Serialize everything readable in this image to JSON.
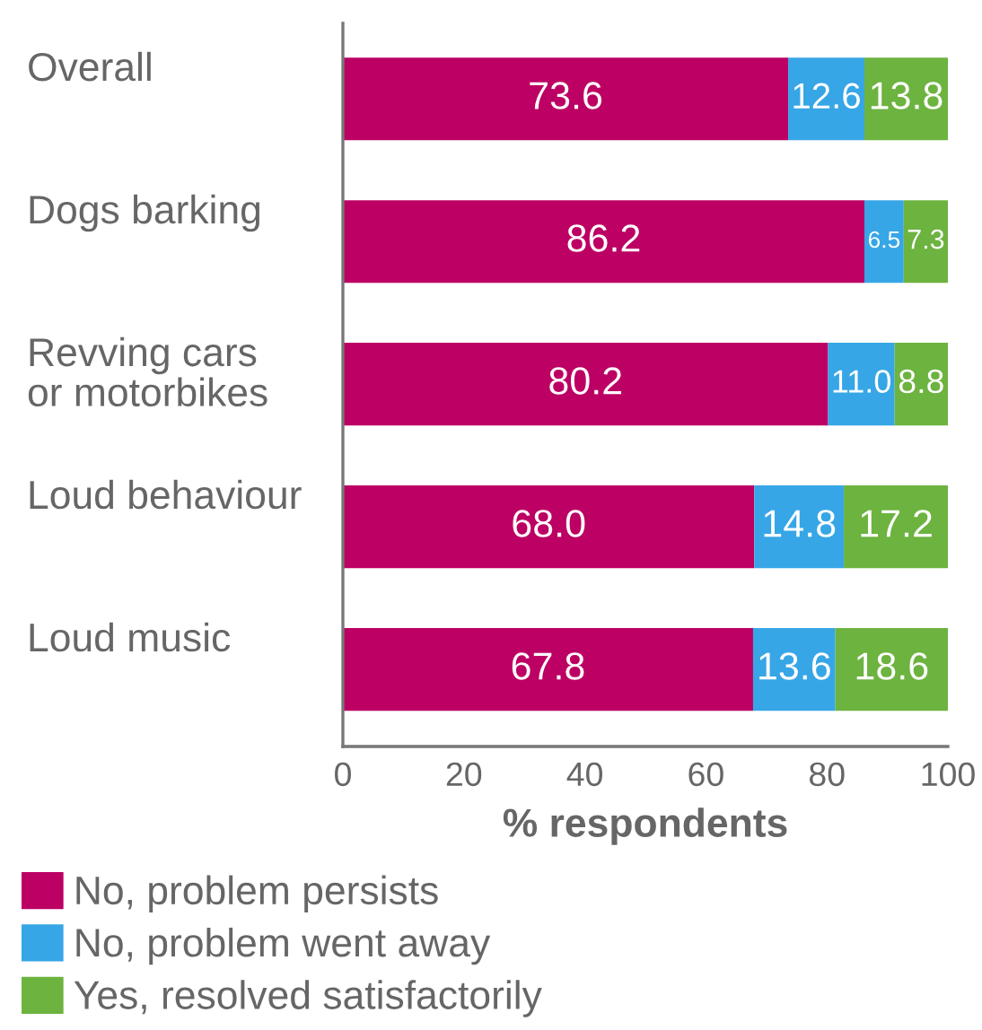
{
  "chart_data": {
    "type": "bar",
    "orientation": "horizontal",
    "stacked": true,
    "xlabel": "% respondents",
    "categories": [
      "Overall",
      "Dogs barking",
      "Revving cars\nor motorbikes",
      "Loud behaviour",
      "Loud music"
    ],
    "series": [
      {
        "name": "No, problem persists",
        "color": "#bc0064",
        "values": [
          73.6,
          86.2,
          80.2,
          68.0,
          67.8
        ],
        "value_labels": [
          "73.6",
          "86.2",
          "80.2",
          "68.0",
          "67.8"
        ]
      },
      {
        "name": "No, problem went away",
        "color": "#37a6e6",
        "values": [
          12.6,
          6.5,
          11.0,
          14.8,
          13.6
        ],
        "value_labels": [
          "12.6",
          "6.5",
          "11.0",
          "14.8",
          "13.6"
        ]
      },
      {
        "name": "Yes, resolved satisfactorily",
        "color": "#6cb33f",
        "values": [
          13.8,
          7.3,
          8.8,
          17.2,
          18.6
        ],
        "value_labels": [
          "13.8",
          "7.3",
          "8.8",
          "17.2",
          "18.6"
        ]
      }
    ],
    "xlim": [
      0,
      100
    ],
    "xticks": [
      0,
      20,
      40,
      60,
      80,
      100
    ],
    "grid": false,
    "legend": "bottom"
  }
}
